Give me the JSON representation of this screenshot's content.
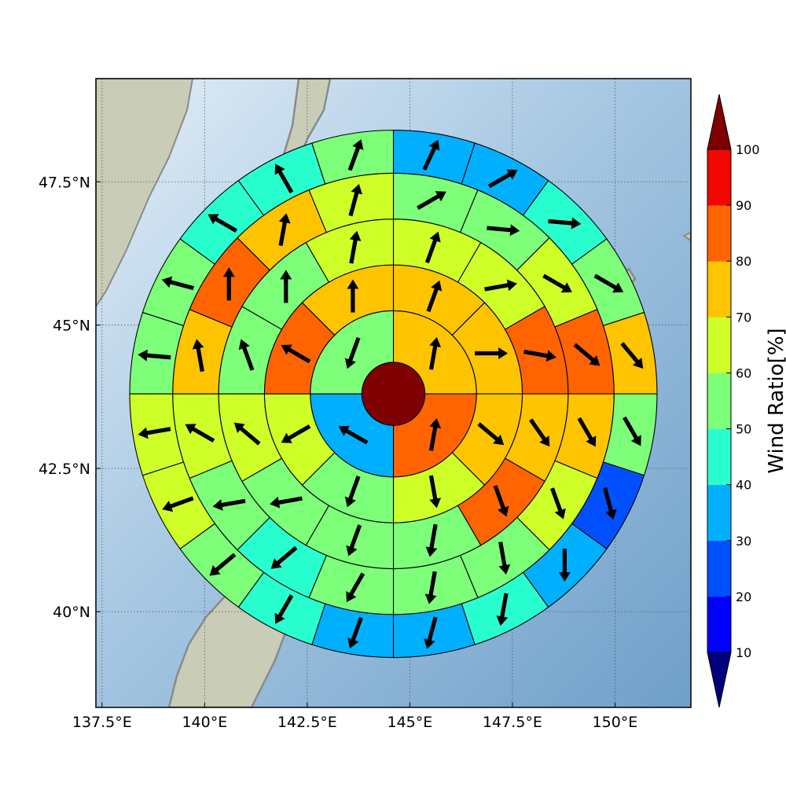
{
  "chart_data": {
    "type": "polar-sector-map",
    "title": "",
    "xlabel": "",
    "ylabel": "",
    "xlim": [
      137.35,
      151.85
    ],
    "ylim": [
      38.33,
      49.3
    ],
    "x_ticks": [
      137.5,
      140,
      142.5,
      145,
      147.5,
      150
    ],
    "x_tick_labels": [
      "137.5°E",
      "140°E",
      "142.5°E",
      "145°E",
      "147.5°E",
      "150°E"
    ],
    "y_ticks": [
      40,
      42.5,
      45,
      47.5
    ],
    "y_tick_labels": [
      "40°N",
      "42.5°N",
      "45°N",
      "47.5°N"
    ],
    "grid": true,
    "center": {
      "lon": 144.6,
      "lat": 43.8,
      "value": 100
    },
    "ring_radius_deg_lat": [
      0.55,
      1.45,
      2.25,
      3.05,
      3.85,
      4.6
    ],
    "sectors_per_ring": [
      4,
      8,
      12,
      16,
      20
    ],
    "first_sector_azimuth_deg": 0,
    "rings": [
      {
        "values": [
          70,
          80,
          30,
          50
        ],
        "arrow_dir_deg": [
          10,
          10,
          300,
          200
        ]
      },
      {
        "values": [
          70,
          70,
          70,
          60,
          50,
          60,
          80,
          70
        ],
        "arrow_dir_deg": [
          20,
          90,
          130,
          170,
          200,
          240,
          300,
          0
        ]
      },
      {
        "values": [
          60,
          60,
          80,
          70,
          80,
          50,
          50,
          50,
          60,
          50,
          50,
          60
        ],
        "arrow_dir_deg": [
          20,
          80,
          100,
          145,
          160,
          190,
          200,
          260,
          310,
          340,
          0,
          10
        ]
      },
      {
        "values": [
          50,
          50,
          60,
          80,
          70,
          60,
          50,
          50,
          50,
          40,
          50,
          60,
          70,
          80,
          70,
          60
        ],
        "arrow_dir_deg": [
          60,
          95,
          120,
          130,
          150,
          160,
          170,
          190,
          210,
          230,
          260,
          300,
          350,
          0,
          10,
          15
        ]
      },
      {
        "values": [
          30,
          30,
          40,
          50,
          70,
          50,
          20,
          30,
          40,
          30,
          30,
          40,
          50,
          60,
          60,
          50,
          50,
          40,
          40,
          50
        ],
        "arrow_dir_deg": [
          25,
          60,
          95,
          120,
          140,
          150,
          165,
          180,
          190,
          195,
          200,
          210,
          230,
          250,
          260,
          275,
          285,
          300,
          330,
          20
        ]
      }
    ],
    "colorbar": {
      "label": "Wind Ratio[%]",
      "boundaries": [
        10,
        20,
        30,
        40,
        50,
        60,
        70,
        80,
        90,
        100
      ],
      "tick_labels": [
        "10",
        "20",
        "30",
        "40",
        "50",
        "60",
        "70",
        "80",
        "90",
        "100"
      ],
      "colors": [
        "#0000ff",
        "#0050ff",
        "#00b0ff",
        "#29ffce",
        "#7dff7a",
        "#ceff29",
        "#ffc400",
        "#ff6400",
        "#f10800"
      ],
      "under_color": "#00007f",
      "over_color": "#7f0000",
      "extend": "both"
    }
  }
}
